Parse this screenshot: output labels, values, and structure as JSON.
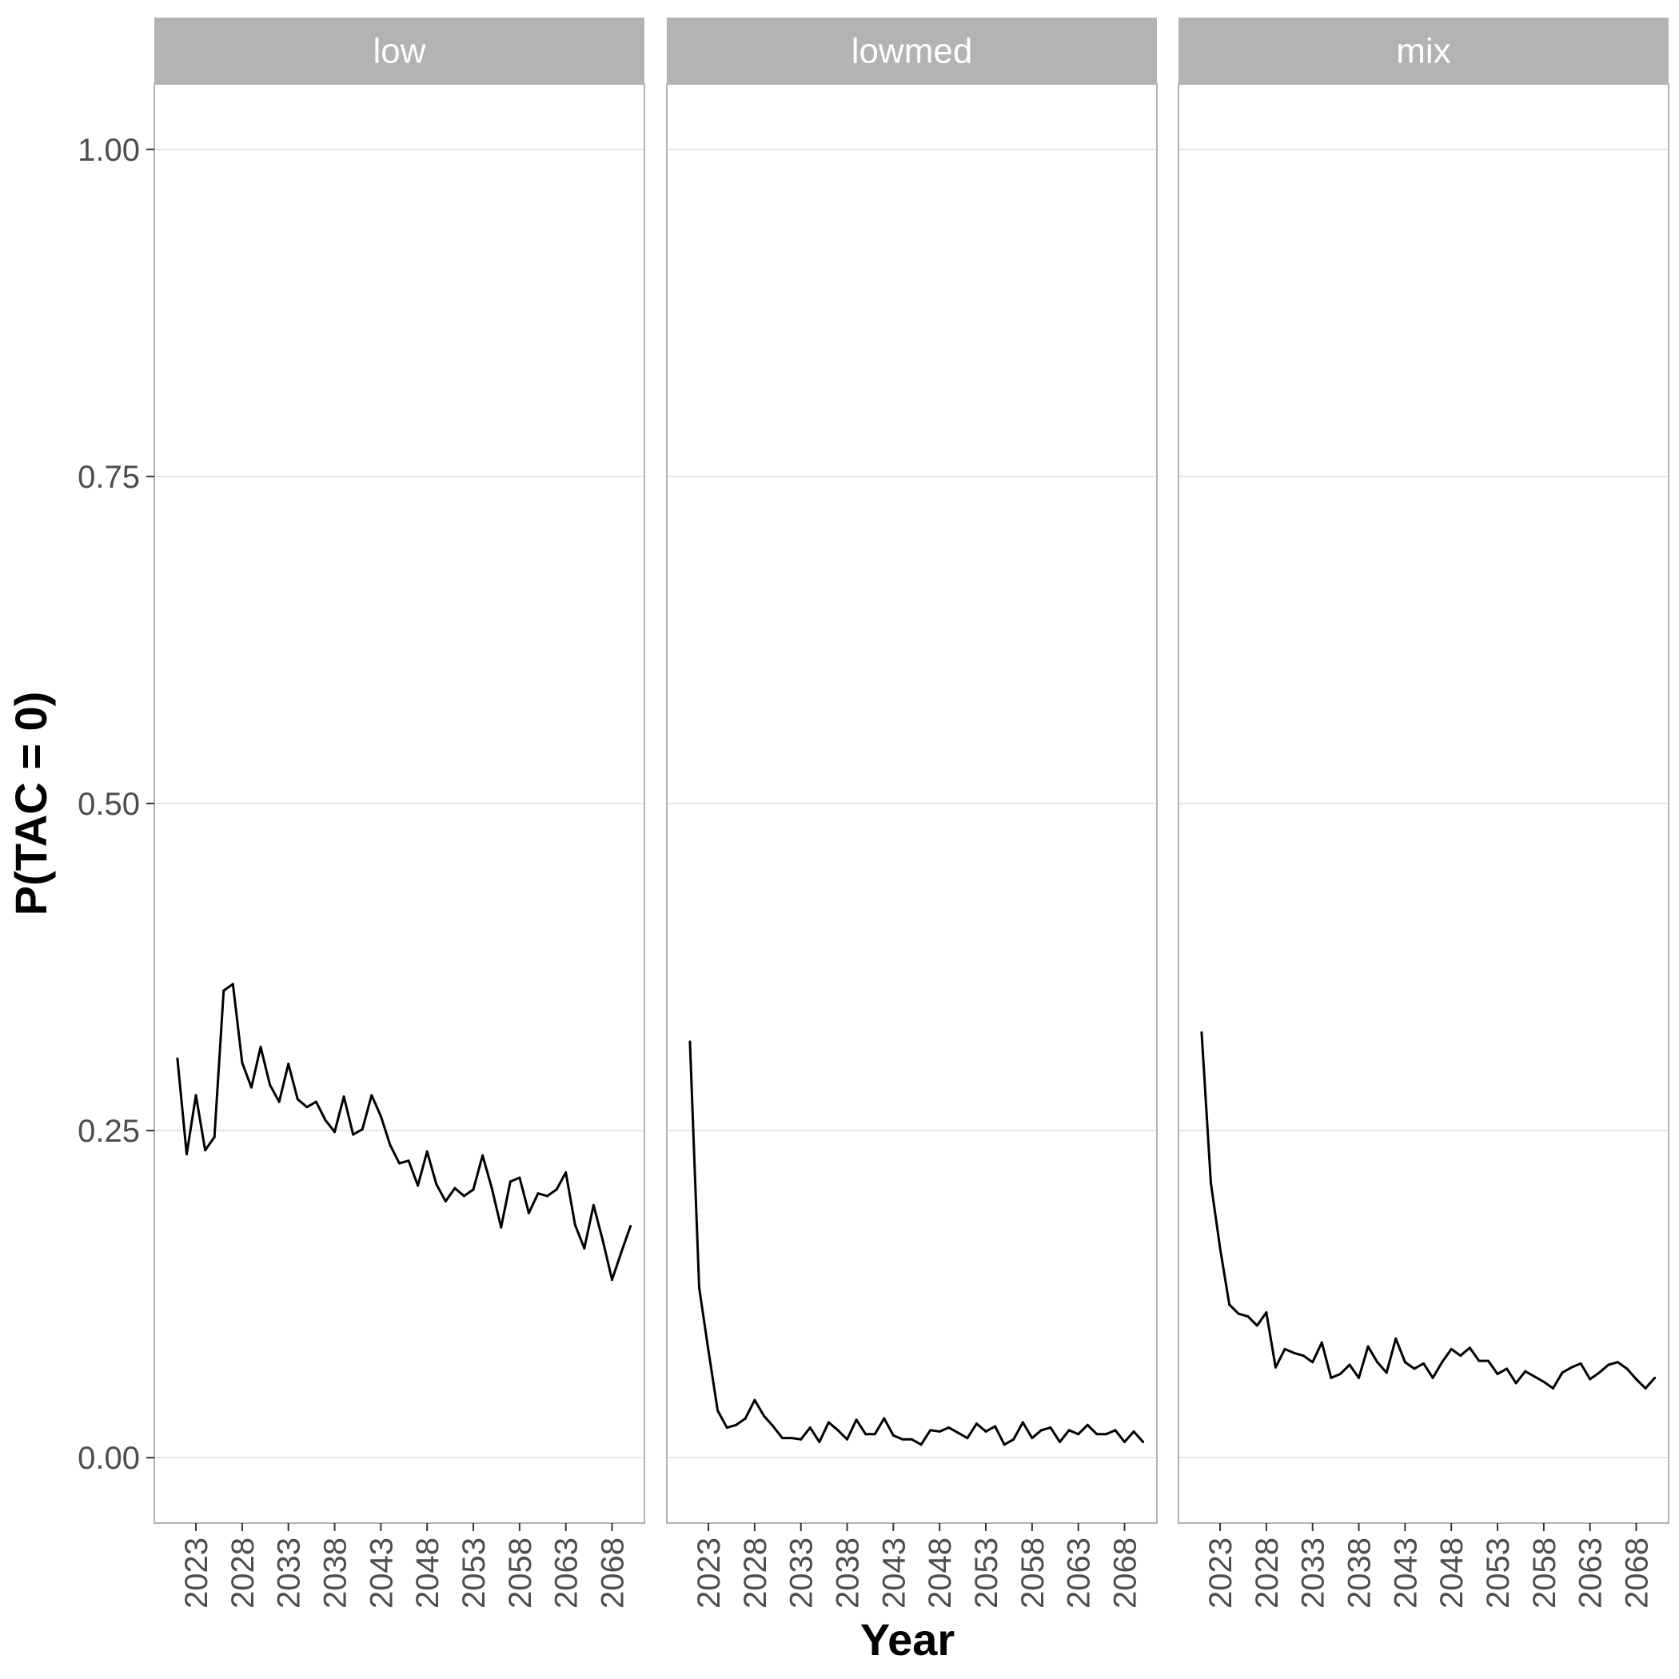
{
  "chart_data": {
    "type": "line",
    "xlabel": "Year",
    "ylabel": "P(TAC = 0)",
    "ylim": [
      -0.05,
      1.05
    ],
    "xlim": [
      2018.5,
      2071.5
    ],
    "x_ticks": [
      "2023",
      "2028",
      "2033",
      "2038",
      "2043",
      "2048",
      "2053",
      "2058",
      "2063",
      "2068"
    ],
    "y_ticks": [
      "0.00",
      "0.25",
      "0.50",
      "0.75",
      "1.00"
    ],
    "grid": true,
    "line_color": "#000000",
    "strip_color": "#b3b3b3",
    "x": [
      2021,
      2022,
      2023,
      2024,
      2025,
      2026,
      2027,
      2028,
      2029,
      2030,
      2031,
      2032,
      2033,
      2034,
      2035,
      2036,
      2037,
      2038,
      2039,
      2040,
      2041,
      2042,
      2043,
      2044,
      2045,
      2046,
      2047,
      2048,
      2049,
      2050,
      2051,
      2052,
      2053,
      2054,
      2055,
      2056,
      2057,
      2058,
      2059,
      2060,
      2061,
      2062,
      2063,
      2064,
      2065,
      2066,
      2067,
      2068,
      2069,
      2070
    ],
    "panels": [
      {
        "label": "low",
        "values": [
          0.305,
          0.232,
          0.277,
          0.235,
          0.245,
          0.357,
          0.362,
          0.302,
          0.283,
          0.314,
          0.285,
          0.272,
          0.301,
          0.274,
          0.268,
          0.272,
          0.258,
          0.249,
          0.276,
          0.247,
          0.251,
          0.277,
          0.261,
          0.239,
          0.225,
          0.227,
          0.208,
          0.234,
          0.209,
          0.196,
          0.206,
          0.2,
          0.205,
          0.231,
          0.206,
          0.176,
          0.211,
          0.214,
          0.187,
          0.202,
          0.2,
          0.205,
          0.218,
          0.178,
          0.16,
          0.193,
          0.166,
          0.136,
          0.157,
          0.177
        ]
      },
      {
        "label": "lowmed",
        "values": [
          0.318,
          0.13,
          0.082,
          0.036,
          0.023,
          0.025,
          0.03,
          0.044,
          0.032,
          0.024,
          0.015,
          0.015,
          0.014,
          0.023,
          0.012,
          0.027,
          0.021,
          0.014,
          0.029,
          0.018,
          0.018,
          0.03,
          0.017,
          0.014,
          0.014,
          0.01,
          0.021,
          0.02,
          0.023,
          0.019,
          0.015,
          0.026,
          0.02,
          0.024,
          0.01,
          0.014,
          0.027,
          0.015,
          0.021,
          0.023,
          0.012,
          0.021,
          0.018,
          0.025,
          0.018,
          0.018,
          0.021,
          0.012,
          0.02,
          0.012
        ]
      },
      {
        "label": "mix",
        "values": [
          0.325,
          0.21,
          0.16,
          0.117,
          0.11,
          0.108,
          0.101,
          0.111,
          0.069,
          0.083,
          0.08,
          0.078,
          0.073,
          0.088,
          0.061,
          0.064,
          0.071,
          0.061,
          0.085,
          0.073,
          0.065,
          0.091,
          0.073,
          0.068,
          0.072,
          0.061,
          0.073,
          0.083,
          0.078,
          0.084,
          0.074,
          0.074,
          0.064,
          0.068,
          0.057,
          0.066,
          0.062,
          0.058,
          0.053,
          0.065,
          0.069,
          0.072,
          0.06,
          0.065,
          0.071,
          0.073,
          0.068,
          0.06,
          0.053,
          0.061
        ]
      }
    ]
  }
}
